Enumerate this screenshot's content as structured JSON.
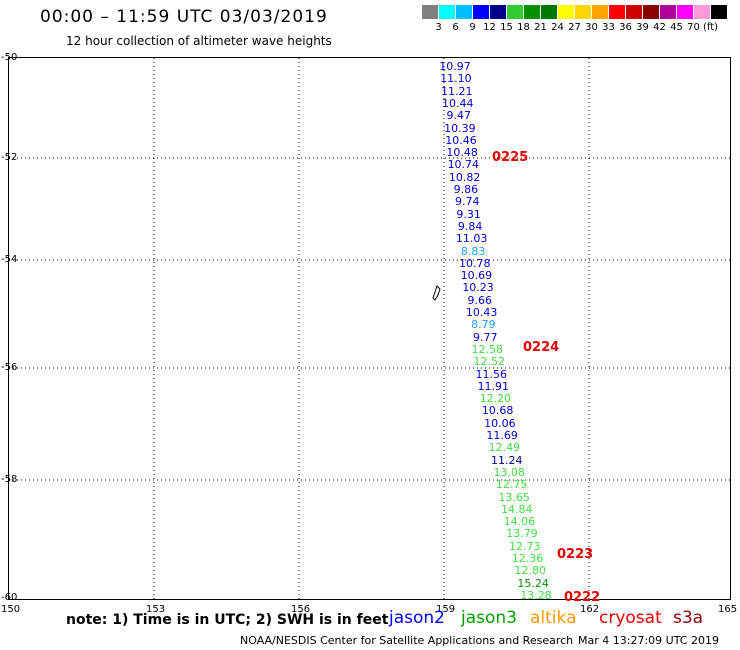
{
  "header": {
    "title": "00:00 – 11:59 UTC 03/03/2019",
    "subtitle": "12 hour collection of altimeter wave heights"
  },
  "scale": {
    "colors": [
      "#7f7f7f",
      "#00ffff",
      "#00bfff",
      "#0000ff",
      "#00008b",
      "#32cd32",
      "#009100",
      "#007800",
      "#ffff00",
      "#ffd700",
      "#ffa500",
      "#ff0000",
      "#cd0000",
      "#8b0000",
      "#b00099",
      "#ff00ff",
      "#ff9ad9",
      "#000000"
    ],
    "labels": [
      "3",
      "6",
      "9",
      "12",
      "15",
      "18",
      "21",
      "24",
      "27",
      "30",
      "33",
      "36",
      "39",
      "42",
      "45",
      "70",
      "(ft)"
    ]
  },
  "axes": {
    "lat_labels": [
      "-50",
      "-52",
      "-54",
      "-56",
      "-58",
      "-60"
    ],
    "lon_labels": [
      "150",
      "153",
      "156",
      "159",
      "162",
      "165"
    ]
  },
  "measurements": [
    {
      "v": "10.97",
      "c": "#0000cc"
    },
    {
      "v": "11.10",
      "c": "#0000cc"
    },
    {
      "v": "11.21",
      "c": "#0000cc"
    },
    {
      "v": "10.44",
      "c": "#0000cc"
    },
    {
      "v": "9.47",
      "c": "#0000cc"
    },
    {
      "v": "10.39",
      "c": "#0000cc"
    },
    {
      "v": "10.46",
      "c": "#0000cc"
    },
    {
      "v": "10.48",
      "c": "#0000cc"
    },
    {
      "v": "10.74",
      "c": "#0000cc"
    },
    {
      "v": "10.82",
      "c": "#0000cc"
    },
    {
      "v": "9.86",
      "c": "#0000cc"
    },
    {
      "v": "9.74",
      "c": "#0000cc"
    },
    {
      "v": "9.31",
      "c": "#0000cc"
    },
    {
      "v": "9.84",
      "c": "#0000cc"
    },
    {
      "v": "11.03",
      "c": "#0000cc"
    },
    {
      "v": "8.83",
      "c": "#1e9eff"
    },
    {
      "v": "10.78",
      "c": "#0000cc"
    },
    {
      "v": "10.69",
      "c": "#0000cc"
    },
    {
      "v": "10.23",
      "c": "#0000cc"
    },
    {
      "v": "9.66",
      "c": "#0000cc"
    },
    {
      "v": "10.43",
      "c": "#0000cc"
    },
    {
      "v": "8.79",
      "c": "#1e9eff"
    },
    {
      "v": "9.77",
      "c": "#0000cc"
    },
    {
      "v": "12.58",
      "c": "#44dd44"
    },
    {
      "v": "12.52",
      "c": "#44dd44"
    },
    {
      "v": "11.56",
      "c": "#0000cc"
    },
    {
      "v": "11.91",
      "c": "#0000cc"
    },
    {
      "v": "12.20",
      "c": "#44dd44"
    },
    {
      "v": "10.68",
      "c": "#0000cc"
    },
    {
      "v": "10.06",
      "c": "#0000cc"
    },
    {
      "v": "11.69",
      "c": "#0000cc"
    },
    {
      "v": "12.49",
      "c": "#44dd44"
    },
    {
      "v": "11.24",
      "c": "#000080"
    },
    {
      "v": "13.08",
      "c": "#44dd44"
    },
    {
      "v": "12.75",
      "c": "#44dd44"
    },
    {
      "v": "13.65",
      "c": "#44dd44"
    },
    {
      "v": "14.84",
      "c": "#44dd44"
    },
    {
      "v": "14.06",
      "c": "#44dd44"
    },
    {
      "v": "13.79",
      "c": "#44dd44"
    },
    {
      "v": "12.73",
      "c": "#44dd44"
    },
    {
      "v": "12.36",
      "c": "#44dd44"
    },
    {
      "v": "12.80",
      "c": "#44dd44"
    },
    {
      "v": "15.24",
      "c": "#009100"
    },
    {
      "v": "13.28",
      "c": "#44dd44"
    }
  ],
  "time_labels": [
    "0225",
    "0224",
    "0223",
    "0222"
  ],
  "note": "note: 1) Time is in UTC; 2) SWH is in feet",
  "legend": [
    {
      "name": "jason2",
      "color": "#0000ff"
    },
    {
      "name": "jason3",
      "color": "#00a000"
    },
    {
      "name": "altika",
      "color": "#ff9900"
    },
    {
      "name": "cryosat",
      "color": "#e00000"
    },
    {
      "name": "s3a",
      "color": "#8b0000"
    }
  ],
  "footer": "NOAA/NESDIS Center for Satellite Applications and Research",
  "footer_date": "Mar  4 13:27:09 UTC 2019"
}
